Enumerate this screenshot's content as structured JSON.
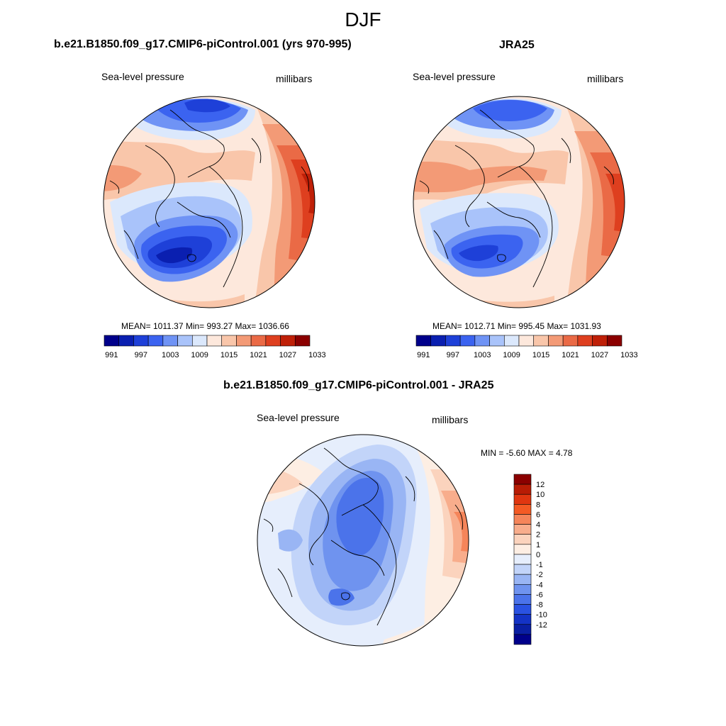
{
  "figure": {
    "season": "DJF",
    "units": "millibars",
    "variable": "Sea-level pressure"
  },
  "panels": [
    {
      "id": "model",
      "title": "b.e21.B1850.f09_g17.CMIP6-piControl.001 (yrs 970-995)",
      "left_label": "Sea-level pressure",
      "right_label": "millibars",
      "stats": "MEAN= 1011.37  Min= 993.27  Max= 1036.66"
    },
    {
      "id": "obs",
      "title": "JRA25",
      "left_label": "Sea-level pressure",
      "right_label": "millibars",
      "stats": "MEAN= 1012.71  Min= 995.45  Max= 1031.93"
    },
    {
      "id": "diff",
      "title": "b.e21.B1850.f09_g17.CMIP6-piControl.001 - JRA25",
      "left_label": "Sea-level pressure",
      "right_label": "millibars",
      "stats": "MIN =  -5.60 MAX =   4.78"
    }
  ],
  "colorbars": {
    "slp": {
      "colors": [
        "#00008b",
        "#0a1fb0",
        "#1e40d8",
        "#3b63f0",
        "#6f93f5",
        "#a9c3fa",
        "#dbe8fc",
        "#fde8dc",
        "#f9c6aa",
        "#f39a76",
        "#ea6a46",
        "#de3f1f",
        "#bf2008",
        "#8b0000"
      ],
      "tick_labels": [
        "991",
        "997",
        "1003",
        "1009",
        "1015",
        "1021",
        "1027",
        "1033"
      ]
    },
    "diff": {
      "colors_top_to_bottom": [
        "#8b0000",
        "#b81c05",
        "#e03610",
        "#f45a24",
        "#f5855a",
        "#f8ad8c",
        "#fbd3bd",
        "#fdeee3",
        "#e6eefc",
        "#c2d4f9",
        "#99b5f4",
        "#6f93ef",
        "#4b73ea",
        "#2a52e2",
        "#1433c6",
        "#0a1fa3",
        "#00008b"
      ],
      "tick_labels": [
        "12",
        "10",
        "8",
        "6",
        "4",
        "2",
        "1",
        "0",
        "-1",
        "-2",
        "-4",
        "-6",
        "-8",
        "-10",
        "-12"
      ]
    }
  }
}
